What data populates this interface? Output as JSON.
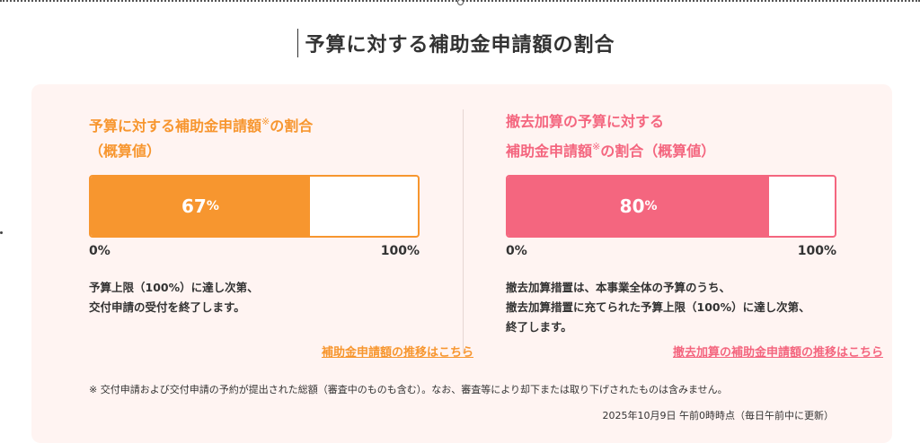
{
  "page": {
    "title": "予算に対する補助金申請額の割合"
  },
  "left": {
    "title_line1_a": "予算に対する補助金申請額",
    "title_mark": "※",
    "title_line1_b": "の割合",
    "title_line2": "（概算値）",
    "value": 67,
    "value_label": "67",
    "value_unit": "%",
    "axis_min": "0%",
    "axis_max": "100%",
    "note_line1": "予算上限（100%）に達し次第、",
    "note_line2": "交付申請の受付を終了します。",
    "link_label": "補助金申請額の推移はこちら",
    "accent_color": "#f7962f"
  },
  "right": {
    "title_line1": "撤去加算の予算に対する",
    "title_line2_a": "補助金申請額",
    "title_mark": "※",
    "title_line2_b": "の割合（概算値）",
    "value": 80,
    "value_label": "80",
    "value_unit": "%",
    "axis_min": "0%",
    "axis_max": "100%",
    "note_line1": "撤去加算措置は、本事業全体の予算のうち、",
    "note_line2": "撤去加算措置に充てられた予算上限（100%）に達し次第、",
    "note_line3": "終了します。",
    "link_label": "撤去加算の補助金申請額の推移はこちら",
    "accent_color": "#f4667f"
  },
  "footer": {
    "footnote": "※ 交付申請および交付申請の予約が提出された総額（審査中のものも含む）。なお、審査等により却下または取り下げされたものは含みません。",
    "updated": "2025年10月9日 午前0時時点（毎日午前中に更新）"
  },
  "panel_background": "#fff4f2"
}
